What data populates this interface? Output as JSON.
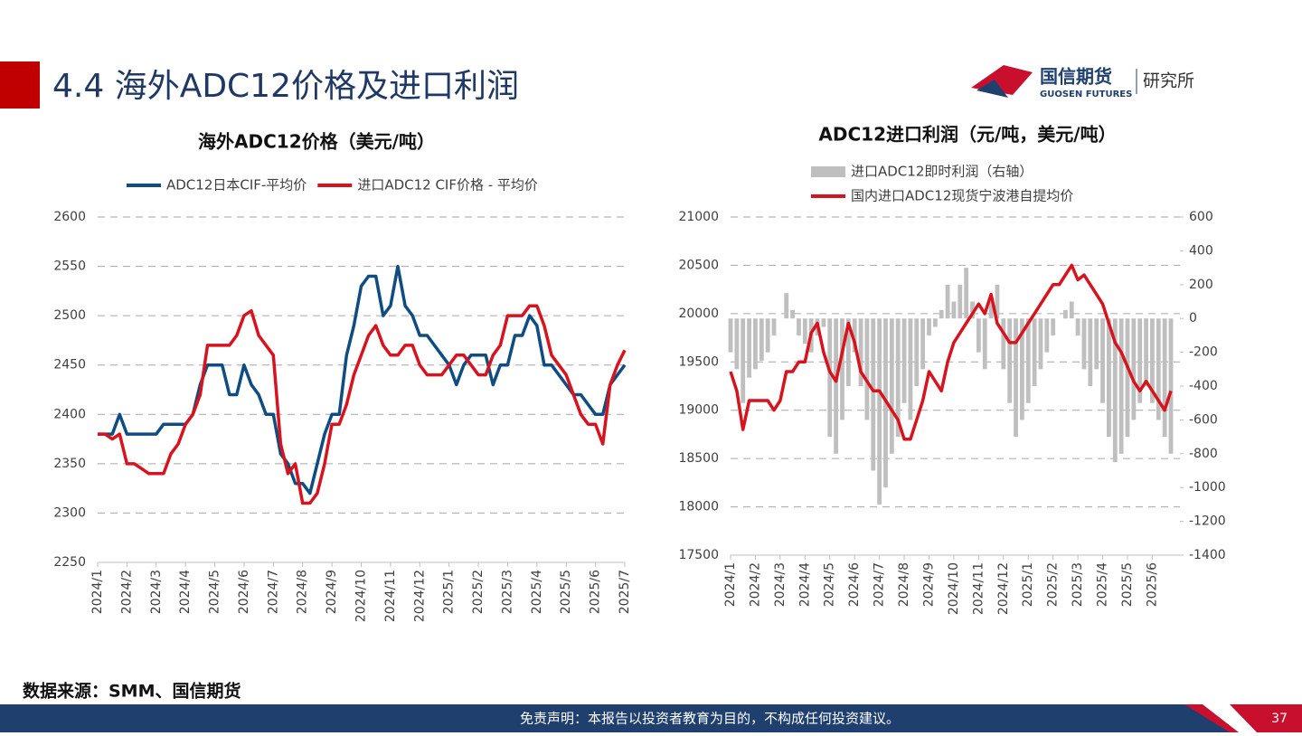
{
  "header": {
    "title": "4.4 海外ADC12价格及进口利润",
    "logo_cn": "国信期货",
    "logo_en": "GUOSEN FUTURES",
    "logo_dept": "研究所"
  },
  "source": "数据来源：SMM、国信期货",
  "footer": {
    "disclaimer": "免责声明：本报告以投资者教育为目的，不构成任何投资建议。",
    "page": "37"
  },
  "chart_data": [
    {
      "type": "line",
      "title": "海外ADC12价格（美元/吨）",
      "categories": [
        "2024/1",
        null,
        null,
        null,
        "2024/2",
        null,
        null,
        null,
        "2024/3",
        null,
        null,
        null,
        "2024/4",
        null,
        null,
        null,
        "2024/5",
        null,
        null,
        null,
        "2024/6",
        null,
        null,
        null,
        "2024/7",
        null,
        null,
        null,
        "2024/8",
        null,
        null,
        null,
        "2024/9",
        null,
        null,
        null,
        "2024/10",
        null,
        null,
        null,
        "2024/11",
        null,
        null,
        null,
        "2024/12",
        null,
        null,
        null,
        "2025/1",
        null,
        null,
        null,
        "2025/2",
        null,
        null,
        null,
        "2025/3",
        null,
        null,
        null,
        "2025/4",
        null,
        null,
        null,
        "2025/5",
        null,
        null,
        null,
        "2025/6",
        null,
        null,
        null,
        "2025/7"
      ],
      "series": [
        {
          "name": "ADC12日本CIF-平均价",
          "color": "#0f4c81",
          "values": [
            2380,
            2380,
            2380,
            2400,
            2380,
            2380,
            2380,
            2380,
            2380,
            2390,
            2390,
            2390,
            2390,
            2400,
            2430,
            2450,
            2450,
            2450,
            2420,
            2420,
            2450,
            2430,
            2420,
            2400,
            2400,
            2360,
            2350,
            2330,
            2330,
            2320,
            2350,
            2380,
            2400,
            2400,
            2460,
            2490,
            2530,
            2540,
            2540,
            2500,
            2510,
            2550,
            2510,
            2500,
            2480,
            2480,
            2470,
            2460,
            2450,
            2430,
            2450,
            2460,
            2460,
            2460,
            2430,
            2450,
            2450,
            2480,
            2480,
            2500,
            2490,
            2450,
            2450,
            2440,
            2430,
            2420,
            2420,
            2410,
            2400,
            2400,
            2430,
            2440,
            2450
          ]
        },
        {
          "name": "进口ADC12 CIF价格 - 平均价",
          "color": "#d7141e",
          "values": [
            2380,
            2380,
            2375,
            2380,
            2350,
            2350,
            2345,
            2340,
            2340,
            2340,
            2360,
            2370,
            2390,
            2400,
            2420,
            2470,
            2470,
            2470,
            2470,
            2480,
            2500,
            2505,
            2480,
            2470,
            2460,
            2370,
            2340,
            2350,
            2310,
            2310,
            2320,
            2350,
            2390,
            2390,
            2410,
            2440,
            2460,
            2480,
            2490,
            2470,
            2460,
            2460,
            2470,
            2470,
            2450,
            2440,
            2440,
            2440,
            2450,
            2460,
            2460,
            2450,
            2440,
            2440,
            2460,
            2470,
            2500,
            2500,
            2500,
            2510,
            2510,
            2490,
            2460,
            2450,
            2440,
            2420,
            2400,
            2390,
            2390,
            2370,
            2430,
            2450,
            2465
          ]
        }
      ],
      "ylim": [
        2250,
        2600
      ],
      "yticks": [
        2250,
        2300,
        2350,
        2400,
        2450,
        2500,
        2550,
        2600
      ],
      "grid": true,
      "legend": "top"
    },
    {
      "type": "combo",
      "title": "ADC12进口利润（元/吨，美元/吨）",
      "categories": [
        "2024/1",
        null,
        null,
        null,
        "2024/2",
        null,
        null,
        null,
        "2024/3",
        null,
        null,
        null,
        "2024/4",
        null,
        null,
        null,
        "2024/5",
        null,
        null,
        null,
        "2024/6",
        null,
        null,
        null,
        "2024/7",
        null,
        null,
        null,
        "2024/8",
        null,
        null,
        null,
        "2024/9",
        null,
        null,
        null,
        "2024/10",
        null,
        null,
        null,
        "2024/11",
        null,
        null,
        null,
        "2024/12",
        null,
        null,
        null,
        "2025/1",
        null,
        null,
        null,
        "2025/2",
        null,
        null,
        null,
        "2025/3",
        null,
        null,
        null,
        "2025/4",
        null,
        null,
        null,
        "2025/5",
        null,
        null,
        null,
        "2025/6",
        null,
        null,
        null
      ],
      "series": [
        {
          "name": "进口ADC12即时利润（右轴）",
          "type": "bar",
          "axis": "y2",
          "color": "#bfbfbf",
          "values": [
            -200,
            -300,
            -500,
            -350,
            -300,
            -250,
            -200,
            -100,
            0,
            150,
            50,
            -100,
            -150,
            -200,
            -100,
            -50,
            -700,
            -800,
            -600,
            -400,
            -200,
            -400,
            -600,
            -900,
            -1100,
            -1000,
            -800,
            -700,
            -500,
            -600,
            -400,
            -300,
            -100,
            -50,
            50,
            200,
            100,
            200,
            300,
            100,
            -200,
            -300,
            100,
            200,
            -300,
            -500,
            -700,
            -600,
            -500,
            -400,
            -300,
            -200,
            -100,
            0,
            50,
            100,
            -100,
            -300,
            -400,
            -300,
            -500,
            -700,
            -850,
            -800,
            -700,
            -600,
            -500,
            -400,
            -500,
            -600,
            -700,
            -800
          ]
        },
        {
          "name": "国内进口ADC12现货宁波港自提均价",
          "type": "line",
          "color": "#d7141e",
          "values": [
            19400,
            19200,
            18800,
            19100,
            19100,
            19100,
            19100,
            19000,
            19100,
            19400,
            19400,
            19500,
            19500,
            19800,
            19900,
            19600,
            19400,
            19300,
            19600,
            19900,
            19700,
            19400,
            19300,
            19200,
            19200,
            19100,
            19000,
            18900,
            18700,
            18700,
            18900,
            19100,
            19400,
            19300,
            19200,
            19500,
            19700,
            19800,
            19900,
            20000,
            20100,
            20000,
            20200,
            19900,
            19800,
            19700,
            19700,
            19800,
            19900,
            20000,
            20100,
            20200,
            20300,
            20300,
            20400,
            20500,
            20350,
            20400,
            20300,
            20200,
            20100,
            19900,
            19700,
            19600,
            19450,
            19300,
            19200,
            19300,
            19200,
            19100,
            19000,
            19200
          ]
        }
      ],
      "ylim": [
        17500,
        21000
      ],
      "yticks": [
        17500,
        18000,
        18500,
        19000,
        19500,
        20000,
        20500,
        21000
      ],
      "y2lim": [
        -1400,
        600
      ],
      "y2ticks": [
        -1400,
        -1200,
        -1000,
        -800,
        -600,
        -400,
        -200,
        0,
        200,
        400,
        600
      ],
      "grid": true,
      "legend": "top"
    }
  ]
}
